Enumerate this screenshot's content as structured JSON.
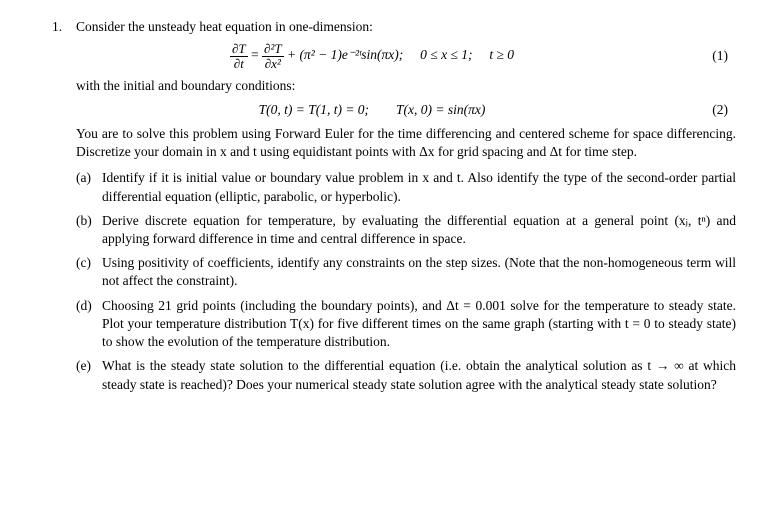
{
  "problem_number": "1.",
  "intro": "Consider the unsteady heat equation in one-dimension:",
  "eq1_left_num": "∂T",
  "eq1_left_den": "∂t",
  "eq1_mid_num": "∂²T",
  "eq1_mid_den": "∂x²",
  "eq1_rest": " + (π² − 1)e⁻²ᵗsin(πx);  0 ≤ x ≤ 1;  t ≥ 0",
  "eq1_num": "(1)",
  "bc_label": "with the initial and boundary conditions:",
  "eq2": "T(0, t) = T(1, t) = 0;  T(x, 0) = sin(πx)",
  "eq2_num": "(2)",
  "main_para": "You are to solve this problem using Forward Euler for the time differencing and centered scheme for space differencing. Discretize your domain in x and t using equidistant points with Δx for grid spacing and Δt for time step.",
  "parts": {
    "a": {
      "label": "(a)",
      "text": "Identify if it is initial value or boundary value problem in x and t. Also identify the type of the second-order partial differential equation (elliptic, parabolic, or hyperbolic)."
    },
    "b": {
      "label": "(b)",
      "text": "Derive discrete equation for temperature, by evaluating the differential equation at a general point (xⱼ, tⁿ) and applying forward difference in time and central difference in space."
    },
    "c": {
      "label": "(c)",
      "text": "Using positivity of coefficients, identify any constraints on the step sizes. (Note that the non-homogeneous term will not affect the constraint)."
    },
    "d": {
      "label": "(d)",
      "text": "Choosing 21 grid points (including the boundary points), and Δt = 0.001 solve for the temperature to steady state. Plot your temperature distribution T(x) for five different times on the same graph (starting with t = 0 to steady state) to show the evolution of the temperature distribution."
    },
    "e": {
      "label": "(e)",
      "text": "What is the steady state solution to the differential equation (i.e. obtain the analytical solution as t → ∞ at which steady state is reached)? Does your numerical steady state solution agree with the analytical steady state solution?"
    }
  }
}
